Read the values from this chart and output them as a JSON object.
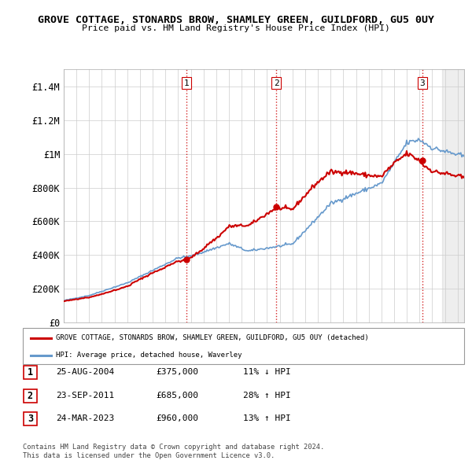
{
  "title": "GROVE COTTAGE, STONARDS BROW, SHAMLEY GREEN, GUILDFORD, GU5 0UY",
  "subtitle": "Price paid vs. HM Land Registry's House Price Index (HPI)",
  "legend_line1": "GROVE COTTAGE, STONARDS BROW, SHAMLEY GREEN, GUILDFORD, GU5 0UY (detached)",
  "legend_line2": "HPI: Average price, detached house, Waverley",
  "line_color_red": "#cc0000",
  "line_color_blue": "#6699cc",
  "sale_color": "#cc0000",
  "vline_color": "#cc0000",
  "ylim": [
    0,
    1500000
  ],
  "yticks": [
    0,
    200000,
    400000,
    600000,
    800000,
    1000000,
    1200000,
    1400000
  ],
  "ytick_labels": [
    "£0",
    "£200K",
    "£400K",
    "£600K",
    "£800K",
    "£1M",
    "£1.2M",
    "£1.4M"
  ],
  "sale_dates": [
    2004.65,
    2011.73,
    2023.23
  ],
  "sale_prices": [
    375000,
    685000,
    960000
  ],
  "sale_labels": [
    "1",
    "2",
    "3"
  ],
  "transactions": [
    {
      "label": "1",
      "date": "25-AUG-2004",
      "price": "£375,000",
      "hpi": "11% ↓ HPI"
    },
    {
      "label": "2",
      "date": "23-SEP-2011",
      "price": "£685,000",
      "hpi": "28% ↑ HPI"
    },
    {
      "label": "3",
      "date": "24-MAR-2023",
      "price": "£960,000",
      "hpi": "13% ↑ HPI"
    }
  ],
  "footer1": "Contains HM Land Registry data © Crown copyright and database right 2024.",
  "footer2": "This data is licensed under the Open Government Licence v3.0.",
  "xmin": 1995.0,
  "xmax": 2026.5,
  "xticks": [
    1995,
    1996,
    1997,
    1998,
    1999,
    2000,
    2001,
    2002,
    2003,
    2004,
    2005,
    2006,
    2007,
    2008,
    2009,
    2010,
    2011,
    2012,
    2013,
    2014,
    2015,
    2016,
    2017,
    2018,
    2019,
    2020,
    2021,
    2022,
    2023,
    2024,
    2025,
    2026
  ]
}
